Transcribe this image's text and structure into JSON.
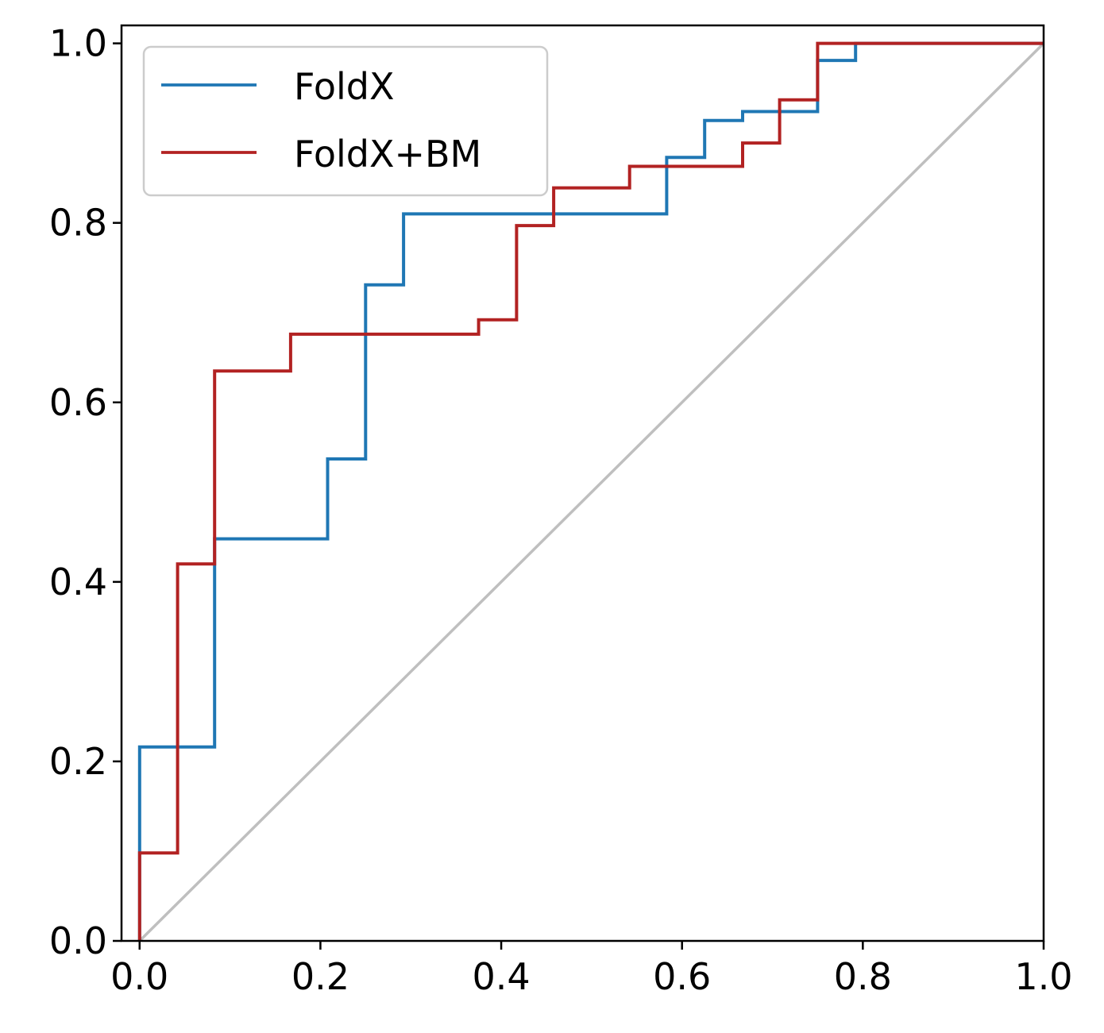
{
  "chart_data": {
    "type": "line",
    "title": "",
    "xlabel": "",
    "ylabel": "",
    "xlim": [
      -0.02,
      1.0
    ],
    "ylim": [
      0.0,
      1.02
    ],
    "grid": false,
    "legend_position": "top-left",
    "x_ticks": [
      "0.0",
      "0.2",
      "0.4",
      "0.6",
      "0.8",
      "1.0"
    ],
    "y_ticks": [
      "0.0",
      "0.2",
      "0.4",
      "0.6",
      "0.8",
      "1.0"
    ],
    "reference_line": {
      "x": [
        0,
        1
      ],
      "y": [
        0,
        1
      ],
      "color": "#bfbfbf"
    },
    "series": [
      {
        "name": "FoldX",
        "color": "#1f77b4",
        "x": [
          0,
          0,
          0.083,
          0.083,
          0.208,
          0.208,
          0.25,
          0.25,
          0.292,
          0.292,
          0.583,
          0.583,
          0.625,
          0.625,
          0.667,
          0.667,
          0.75,
          0.75,
          0.792,
          0.792,
          1.0
        ],
        "y": [
          0,
          0.216,
          0.216,
          0.448,
          0.448,
          0.537,
          0.537,
          0.731,
          0.731,
          0.81,
          0.81,
          0.873,
          0.873,
          0.914,
          0.914,
          0.924,
          0.924,
          0.981,
          0.981,
          1.0,
          1.0
        ]
      },
      {
        "name": "FoldX+BM",
        "color": "#b22222",
        "x": [
          0,
          0,
          0.042,
          0.042,
          0.083,
          0.083,
          0.167,
          0.167,
          0.375,
          0.375,
          0.417,
          0.417,
          0.458,
          0.458,
          0.542,
          0.542,
          0.667,
          0.667,
          0.708,
          0.708,
          0.75,
          0.75,
          1.0
        ],
        "y": [
          0,
          0.098,
          0.098,
          0.42,
          0.42,
          0.635,
          0.635,
          0.676,
          0.676,
          0.692,
          0.692,
          0.797,
          0.797,
          0.839,
          0.839,
          0.863,
          0.863,
          0.889,
          0.889,
          0.937,
          0.937,
          1.0,
          1.0
        ]
      }
    ]
  }
}
